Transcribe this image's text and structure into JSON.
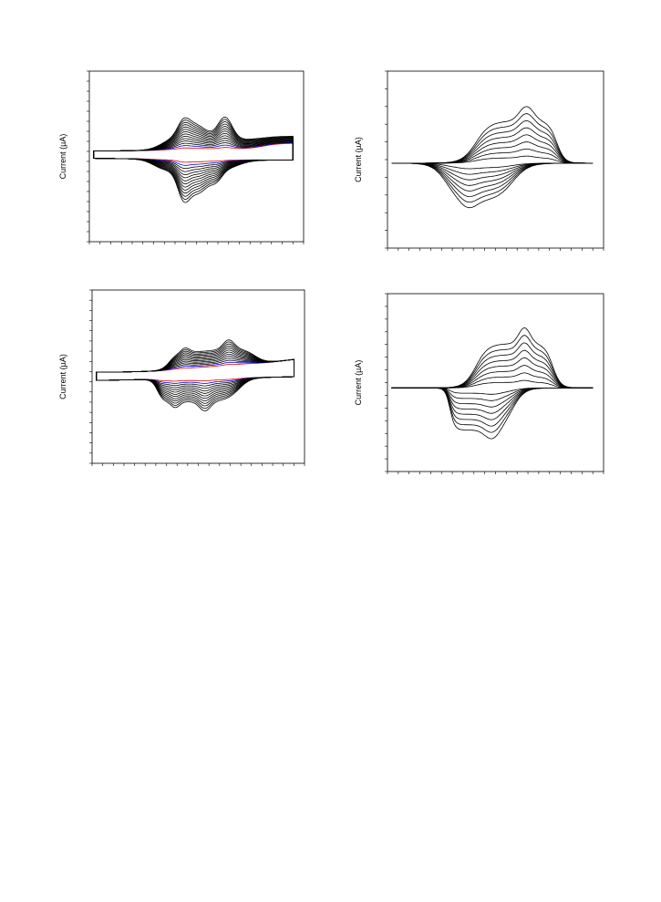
{
  "chart_data": [
    {
      "type": "line",
      "panel": "top-left",
      "ylabel": "Current (µA)",
      "xlabel": "",
      "title": "",
      "grid": false,
      "x_ticks": 20,
      "y_ticks": 17,
      "curve_count": 14,
      "highlight_series": [
        {
          "index": 0,
          "color": "#e00000"
        },
        {
          "index": 1,
          "color": "#0000dd"
        }
      ],
      "series_color": "#000000"
    },
    {
      "type": "line",
      "panel": "top-right",
      "ylabel": "Current (µA)",
      "xlabel": "",
      "title": "",
      "grid": false,
      "x_ticks": 20,
      "y_ticks": 10,
      "curve_count": 8,
      "series_color": "#000000"
    },
    {
      "type": "line",
      "panel": "bottom-left",
      "ylabel": "Current (µA)",
      "xlabel": "",
      "title": "",
      "grid": false,
      "x_ticks": 20,
      "y_ticks": 17,
      "curve_count": 13,
      "highlight_series": [
        {
          "index": 0,
          "color": "#e00000"
        },
        {
          "index": 1,
          "color": "#0000dd"
        }
      ],
      "series_color": "#000000"
    },
    {
      "type": "line",
      "panel": "bottom-right",
      "ylabel": "Current (µA)",
      "xlabel": "",
      "title": "",
      "grid": false,
      "x_ticks": 20,
      "y_ticks": 14,
      "curve_count": 8,
      "series_color": "#000000"
    }
  ]
}
